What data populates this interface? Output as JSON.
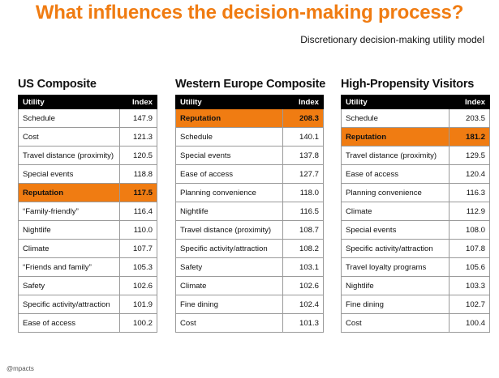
{
  "title": "What influences the decision-making process?",
  "subtitle": "Discretionary decision-making utility model",
  "footer": "@mpacts",
  "header": {
    "utility": "Utility",
    "index": "Index"
  },
  "panels": [
    {
      "title": "US Composite",
      "rows": [
        {
          "utility": "Schedule",
          "index": "147.9",
          "highlight": false
        },
        {
          "utility": "Cost",
          "index": "121.3",
          "highlight": false
        },
        {
          "utility": "Travel distance (proximity)",
          "index": "120.5",
          "highlight": false
        },
        {
          "utility": "Special events",
          "index": "118.8",
          "highlight": false
        },
        {
          "utility": "Reputation",
          "index": "117.5",
          "highlight": true
        },
        {
          "utility": "“Family-friendly”",
          "index": "116.4",
          "highlight": false
        },
        {
          "utility": "Nightlife",
          "index": "110.0",
          "highlight": false
        },
        {
          "utility": "Climate",
          "index": "107.7",
          "highlight": false
        },
        {
          "utility": "“Friends and family”",
          "index": "105.3",
          "highlight": false
        },
        {
          "utility": "Safety",
          "index": "102.6",
          "highlight": false
        },
        {
          "utility": "Specific activity/attraction",
          "index": "101.9",
          "highlight": false
        },
        {
          "utility": "Ease of access",
          "index": "100.2",
          "highlight": false
        }
      ]
    },
    {
      "title": "Western Europe Composite",
      "rows": [
        {
          "utility": "Reputation",
          "index": "208.3",
          "highlight": true
        },
        {
          "utility": "Schedule",
          "index": "140.1",
          "highlight": false
        },
        {
          "utility": "Special events",
          "index": "137.8",
          "highlight": false
        },
        {
          "utility": "Ease of access",
          "index": "127.7",
          "highlight": false
        },
        {
          "utility": "Planning convenience",
          "index": "118.0",
          "highlight": false
        },
        {
          "utility": "Nightlife",
          "index": "116.5",
          "highlight": false
        },
        {
          "utility": "Travel distance (proximity)",
          "index": "108.7",
          "highlight": false
        },
        {
          "utility": "Specific activity/attraction",
          "index": "108.2",
          "highlight": false
        },
        {
          "utility": "Safety",
          "index": "103.1",
          "highlight": false
        },
        {
          "utility": "Climate",
          "index": "102.6",
          "highlight": false
        },
        {
          "utility": "Fine dining",
          "index": "102.4",
          "highlight": false
        },
        {
          "utility": "Cost",
          "index": "101.3",
          "highlight": false
        }
      ]
    },
    {
      "title": "High-Propensity Visitors",
      "rows": [
        {
          "utility": "Schedule",
          "index": "203.5",
          "highlight": false
        },
        {
          "utility": "Reputation",
          "index": "181.2",
          "highlight": true
        },
        {
          "utility": "Travel distance (proximity)",
          "index": "129.5",
          "highlight": false
        },
        {
          "utility": "Ease of access",
          "index": "120.4",
          "highlight": false
        },
        {
          "utility": "Planning convenience",
          "index": "116.3",
          "highlight": false
        },
        {
          "utility": "Climate",
          "index": "112.9",
          "highlight": false
        },
        {
          "utility": "Special events",
          "index": "108.0",
          "highlight": false
        },
        {
          "utility": "Specific activity/attraction",
          "index": "107.8",
          "highlight": false
        },
        {
          "utility": "Travel loyalty programs",
          "index": "105.6",
          "highlight": false
        },
        {
          "utility": "Nightlife",
          "index": "103.3",
          "highlight": false
        },
        {
          "utility": "Fine dining",
          "index": "102.7",
          "highlight": false
        },
        {
          "utility": "Cost",
          "index": "100.4",
          "highlight": false
        }
      ]
    }
  ]
}
